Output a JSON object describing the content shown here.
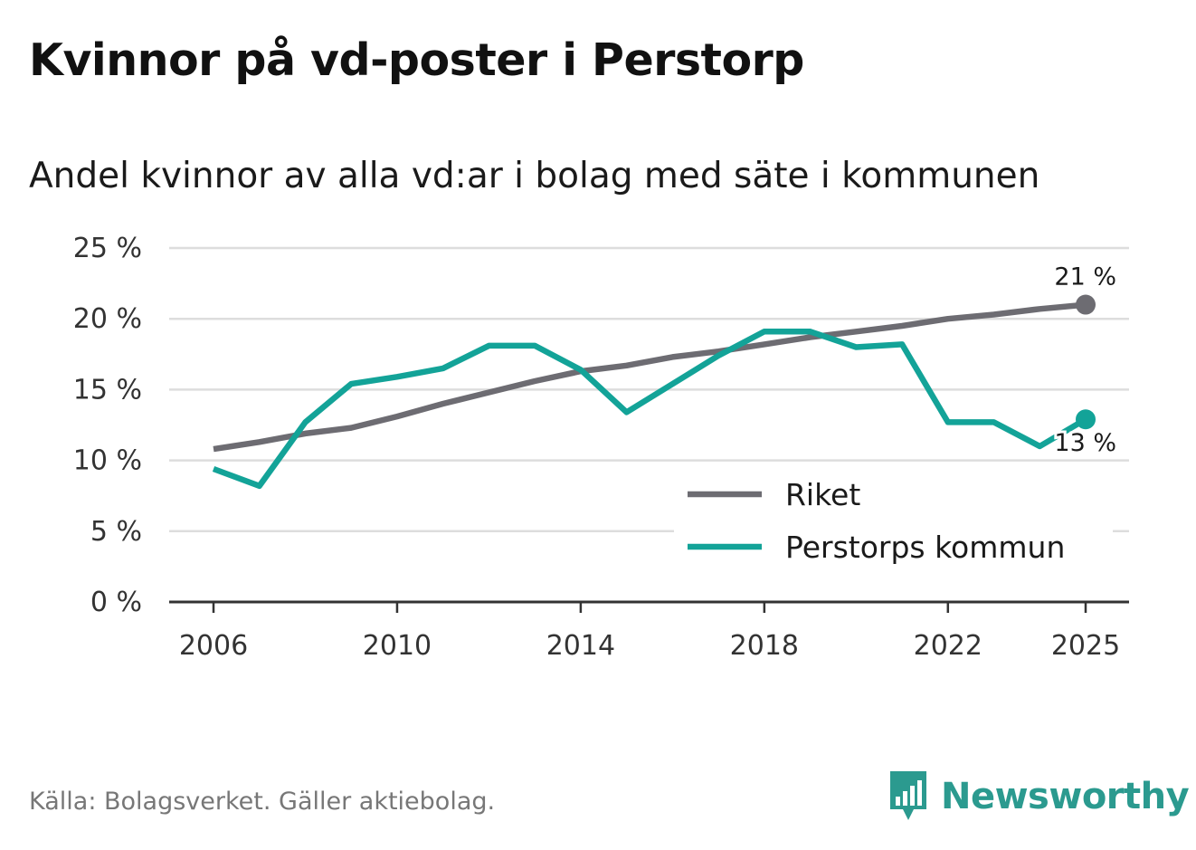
{
  "title": "Kvinnor på vd-poster i Perstorp",
  "subtitle": "Andel kvinnor av alla vd:ar i bolag med säte i kommunen",
  "source": "Källa: Bolagsverket. Gäller aktiebolag.",
  "brand": "Newsworthy",
  "colors": {
    "riket": "#6d6c72",
    "perstorp": "#13a398",
    "grid": "#dddddd",
    "axis": "#333333",
    "brand": "#2b9a8f"
  },
  "chart_data": {
    "type": "line",
    "x": [
      2006,
      2007,
      2008,
      2009,
      2010,
      2011,
      2012,
      2013,
      2014,
      2015,
      2016,
      2017,
      2018,
      2019,
      2020,
      2021,
      2022,
      2023,
      2024,
      2025
    ],
    "series": [
      {
        "name": "Riket",
        "color": "#6d6c72",
        "values": [
          10.8,
          11.3,
          11.9,
          12.3,
          13.1,
          14.0,
          14.8,
          15.6,
          16.3,
          16.7,
          17.3,
          17.7,
          18.2,
          18.7,
          19.1,
          19.5,
          20.0,
          20.3,
          20.7,
          21.0
        ],
        "end_label": "21 %"
      },
      {
        "name": "Perstorps kommun",
        "color": "#13a398",
        "values": [
          9.4,
          8.2,
          12.7,
          15.4,
          15.9,
          16.5,
          18.1,
          18.1,
          16.4,
          13.4,
          15.4,
          17.4,
          19.1,
          19.1,
          18.0,
          18.2,
          12.7,
          12.7,
          11.0,
          12.9
        ],
        "end_label": "13 %"
      }
    ],
    "ylim": [
      0,
      25
    ],
    "yticks": [
      0,
      5,
      10,
      15,
      20,
      25
    ],
    "ytick_labels": [
      "0 %",
      "5 %",
      "10 %",
      "15 %",
      "20 %",
      "25 %"
    ],
    "xticks": [
      2006,
      2010,
      2014,
      2018,
      2022,
      2025
    ],
    "xtick_labels": [
      "2006",
      "2010",
      "2014",
      "2018",
      "2022",
      "2025"
    ],
    "legend_position": "bottom-right",
    "xlabel": "",
    "ylabel": ""
  }
}
